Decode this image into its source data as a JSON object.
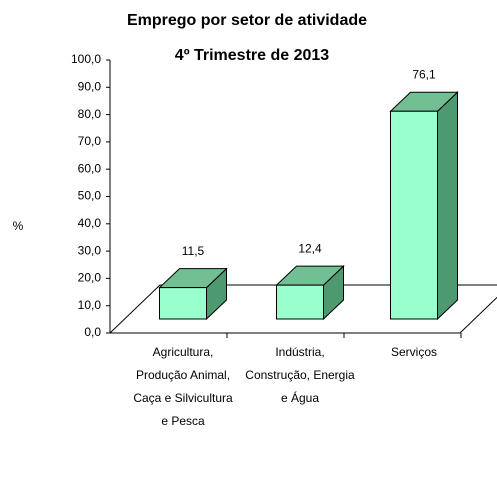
{
  "chart_data": {
    "type": "bar3d",
    "title": "Emprego por setor de atividade",
    "subtitle": "4º Trimestre de 2013",
    "y_label": "%",
    "categories": [
      "Agricultura, Produção Animal, Caça e Silvicultura e Pesca",
      "Indústria, Construção, Energia e Água",
      "Serviços"
    ],
    "values": [
      11.5,
      12.4,
      76.1
    ],
    "value_labels": [
      "11,5",
      "12,4",
      "76,1"
    ],
    "color": "#99ffcc",
    "ylim": [
      0,
      100
    ],
    "yticks": [
      {
        "value": 0,
        "label": "0,0"
      },
      {
        "value": 10,
        "label": "10,0"
      },
      {
        "value": 20,
        "label": "20,0"
      },
      {
        "value": 30,
        "label": "30,0"
      },
      {
        "value": 40,
        "label": "40,0"
      },
      {
        "value": 50,
        "label": "50,0"
      },
      {
        "value": 60,
        "label": "60,0"
      },
      {
        "value": 70,
        "label": "70,0"
      },
      {
        "value": 80,
        "label": "80,0"
      },
      {
        "value": 90,
        "label": "90,0"
      },
      {
        "value": 100,
        "label": "100,0"
      }
    ]
  }
}
